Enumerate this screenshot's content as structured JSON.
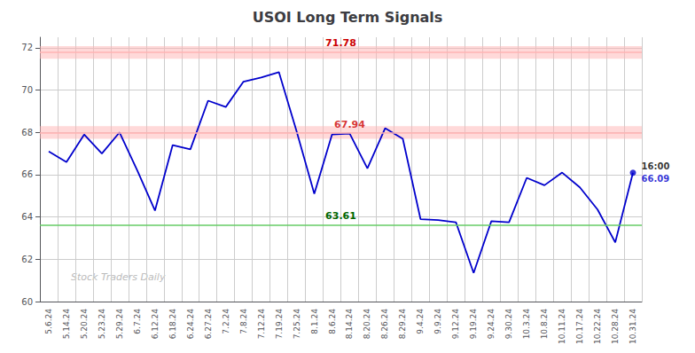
{
  "chart_data": {
    "type": "line",
    "title": "USOI Long Term Signals",
    "watermark": "Stock Traders Daily",
    "categories": [
      "5.6.24",
      "5.14.24",
      "5.20.24",
      "5.23.24",
      "5.29.24",
      "6.7.24",
      "6.12.24",
      "6.18.24",
      "6.24.24",
      "6.27.24",
      "7.2.24",
      "7.8.24",
      "7.12.24",
      "7.19.24",
      "7.25.24",
      "8.1.24",
      "8.6.24",
      "8.14.24",
      "8.20.24",
      "8.26.24",
      "8.29.24",
      "9.4.24",
      "9.9.24",
      "9.12.24",
      "9.19.24",
      "9.24.24",
      "9.30.24",
      "10.3.24",
      "10.8.24",
      "10.11.24",
      "10.17.24",
      "10.22.24",
      "10.28.24",
      "10.31.24"
    ],
    "values": [
      67.1,
      66.6,
      67.9,
      67.0,
      68.0,
      66.2,
      64.3,
      67.4,
      67.2,
      69.5,
      69.2,
      70.4,
      70.6,
      70.85,
      68.05,
      65.1,
      67.9,
      67.94,
      66.3,
      68.2,
      67.7,
      63.9,
      63.85,
      63.75,
      61.35,
      63.8,
      63.75,
      65.85,
      65.5,
      66.1,
      65.4,
      64.35,
      62.8,
      66.09
    ],
    "color": "#0000cc",
    "ylim": [
      60,
      72.5
    ],
    "yticks": [
      60,
      62,
      64,
      66,
      68,
      70,
      72
    ],
    "grid": true,
    "bands": [
      {
        "from": 71.48,
        "to": 72.08,
        "color": "#ffb3b3"
      },
      {
        "from": 67.7,
        "to": 68.3,
        "color": "#ffb3b3"
      }
    ],
    "hlines": [
      {
        "y": 71.78,
        "color": "#ffb3b3",
        "label": "71.78",
        "label_color": "#cc0000"
      },
      {
        "y": 68.0,
        "color": "#ffb3b3"
      },
      {
        "y": 63.61,
        "color": "#66cc66",
        "label": "63.61",
        "label_color": "#006600"
      }
    ],
    "annotations": [
      {
        "text": "67.94",
        "x": "8.14.24",
        "y": 67.94,
        "color": "#cc0000"
      }
    ],
    "last_point": {
      "x": "10.31.24",
      "y": 66.09,
      "color": "#0000cc",
      "labels": [
        {
          "text": "16:00",
          "color": "#000000"
        },
        {
          "text": "66.09",
          "color": "#0000cc"
        }
      ]
    }
  }
}
